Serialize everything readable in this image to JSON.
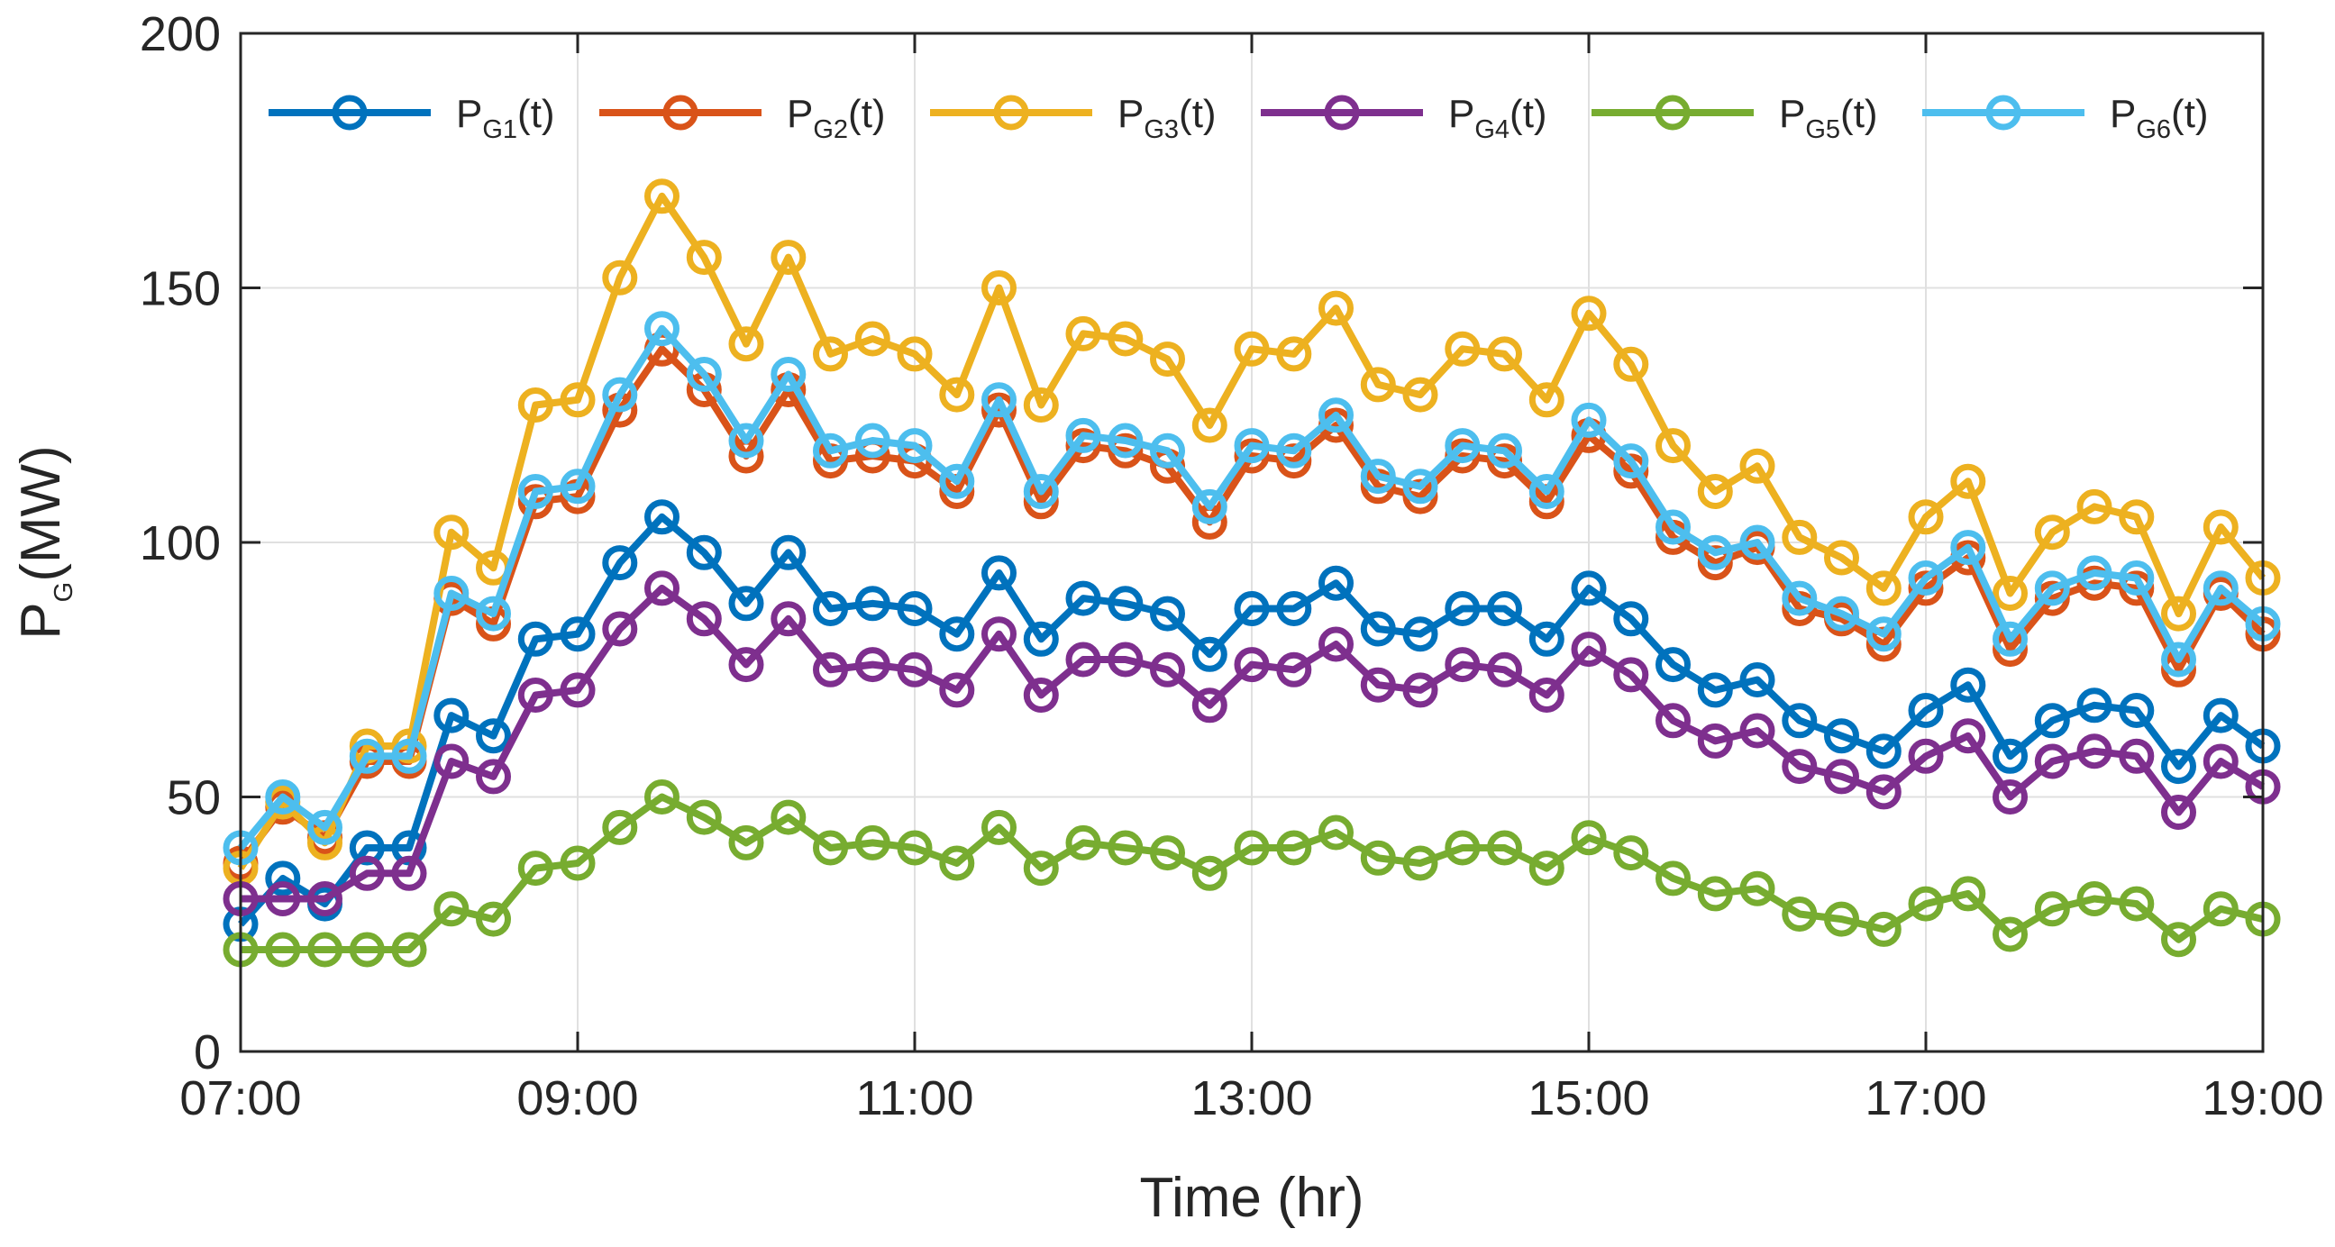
{
  "chart_data": {
    "type": "line",
    "title": "",
    "xlabel": "Time (hr)",
    "ylabel": "P_G(MW)",
    "ylabel_main": "P",
    "ylabel_sub": "G",
    "ylabel_rest": "(MW)",
    "xlim": [
      0,
      12
    ],
    "ylim": [
      0,
      200
    ],
    "grid": true,
    "legend_position": "top",
    "x_tick_labels": [
      "07:00",
      "09:00",
      "11:00",
      "13:00",
      "15:00",
      "17:00",
      "19:00"
    ],
    "y_tick_labels": [
      "0",
      "50",
      "100",
      "150",
      "200"
    ],
    "x": [
      0,
      0.25,
      0.5,
      0.75,
      1,
      1.25,
      1.5,
      1.75,
      2,
      2.25,
      2.5,
      2.75,
      3,
      3.25,
      3.5,
      3.75,
      4,
      4.25,
      4.5,
      4.75,
      5,
      5.25,
      5.5,
      5.75,
      6,
      6.25,
      6.5,
      6.75,
      7,
      7.25,
      7.5,
      7.75,
      8,
      8.25,
      8.5,
      8.75,
      9,
      9.25,
      9.5,
      9.75,
      10,
      10.25,
      10.5,
      10.75,
      11,
      11.25,
      11.5,
      11.75,
      12
    ],
    "series": [
      {
        "name": "P_G1(t)",
        "label_main": "P",
        "label_sub": "G1",
        "label_rest": "(t)",
        "color": "#0072BD",
        "values": [
          25,
          34,
          29,
          40,
          40,
          66,
          62,
          81,
          82,
          96,
          105,
          98,
          88,
          98,
          87,
          88,
          87,
          82,
          94,
          81,
          89,
          88,
          86,
          78,
          87,
          87,
          92,
          83,
          82,
          87,
          87,
          81,
          91,
          85,
          76,
          71,
          73,
          65,
          62,
          59,
          67,
          72,
          58,
          65,
          68,
          67,
          56,
          66,
          60
        ]
      },
      {
        "name": "P_G2(t)",
        "label_main": "P",
        "label_sub": "G2",
        "label_rest": "(t)",
        "color": "#D95319",
        "values": [
          37,
          48,
          42,
          57,
          57,
          89,
          84,
          108,
          109,
          126,
          138,
          130,
          117,
          130,
          116,
          117,
          116,
          110,
          126,
          108,
          119,
          118,
          115,
          104,
          117,
          116,
          123,
          111,
          109,
          117,
          116,
          108,
          121,
          114,
          101,
          96,
          99,
          87,
          85,
          80,
          91,
          97,
          79,
          89,
          92,
          91,
          75,
          90,
          82
        ]
      },
      {
        "name": "P_G3(t)",
        "label_main": "P",
        "label_sub": "G3",
        "label_rest": "(t)",
        "color": "#EDB120",
        "values": [
          36,
          49,
          41,
          60,
          60,
          102,
          95,
          127,
          128,
          152,
          168,
          156,
          139,
          156,
          137,
          140,
          137,
          129,
          150,
          127,
          141,
          140,
          136,
          123,
          138,
          137,
          146,
          131,
          129,
          138,
          137,
          128,
          145,
          135,
          119,
          110,
          115,
          101,
          97,
          91,
          105,
          112,
          90,
          102,
          107,
          105,
          86,
          103,
          93
        ]
      },
      {
        "name": "P_G4(t)",
        "label_main": "P",
        "label_sub": "G4",
        "label_rest": "(t)",
        "color": "#7E2F8E",
        "values": [
          30,
          30,
          30,
          35,
          35,
          57,
          54,
          70,
          71,
          83,
          91,
          85,
          76,
          85,
          75,
          76,
          75,
          71,
          82,
          70,
          77,
          77,
          75,
          68,
          76,
          75,
          80,
          72,
          71,
          76,
          75,
          70,
          79,
          74,
          65,
          61,
          63,
          56,
          54,
          51,
          58,
          62,
          50,
          57,
          59,
          58,
          47,
          57,
          52
        ]
      },
      {
        "name": "P_G5(t)",
        "label_main": "P",
        "label_sub": "G5",
        "label_rest": "(t)",
        "color": "#77AC30",
        "values": [
          20,
          20,
          20,
          20,
          20,
          28,
          26,
          36,
          37,
          44,
          50,
          46,
          41,
          46,
          40,
          41,
          40,
          37,
          44,
          36,
          41,
          40,
          39,
          35,
          40,
          40,
          43,
          38,
          37,
          40,
          40,
          36,
          42,
          39,
          34,
          31,
          32,
          27,
          26,
          24,
          29,
          31,
          23,
          28,
          30,
          29,
          22,
          28,
          26
        ]
      },
      {
        "name": "P_G6(t)",
        "label_main": "P",
        "label_sub": "G6",
        "label_rest": "(t)",
        "color": "#4DBEEE",
        "values": [
          40,
          50,
          44,
          58,
          58,
          90,
          86,
          110,
          111,
          129,
          142,
          133,
          120,
          133,
          118,
          120,
          119,
          112,
          128,
          110,
          121,
          120,
          118,
          107,
          119,
          118,
          125,
          113,
          111,
          119,
          118,
          110,
          124,
          116,
          103,
          98,
          100,
          89,
          86,
          82,
          93,
          99,
          81,
          91,
          94,
          93,
          77,
          91,
          84
        ]
      }
    ]
  }
}
